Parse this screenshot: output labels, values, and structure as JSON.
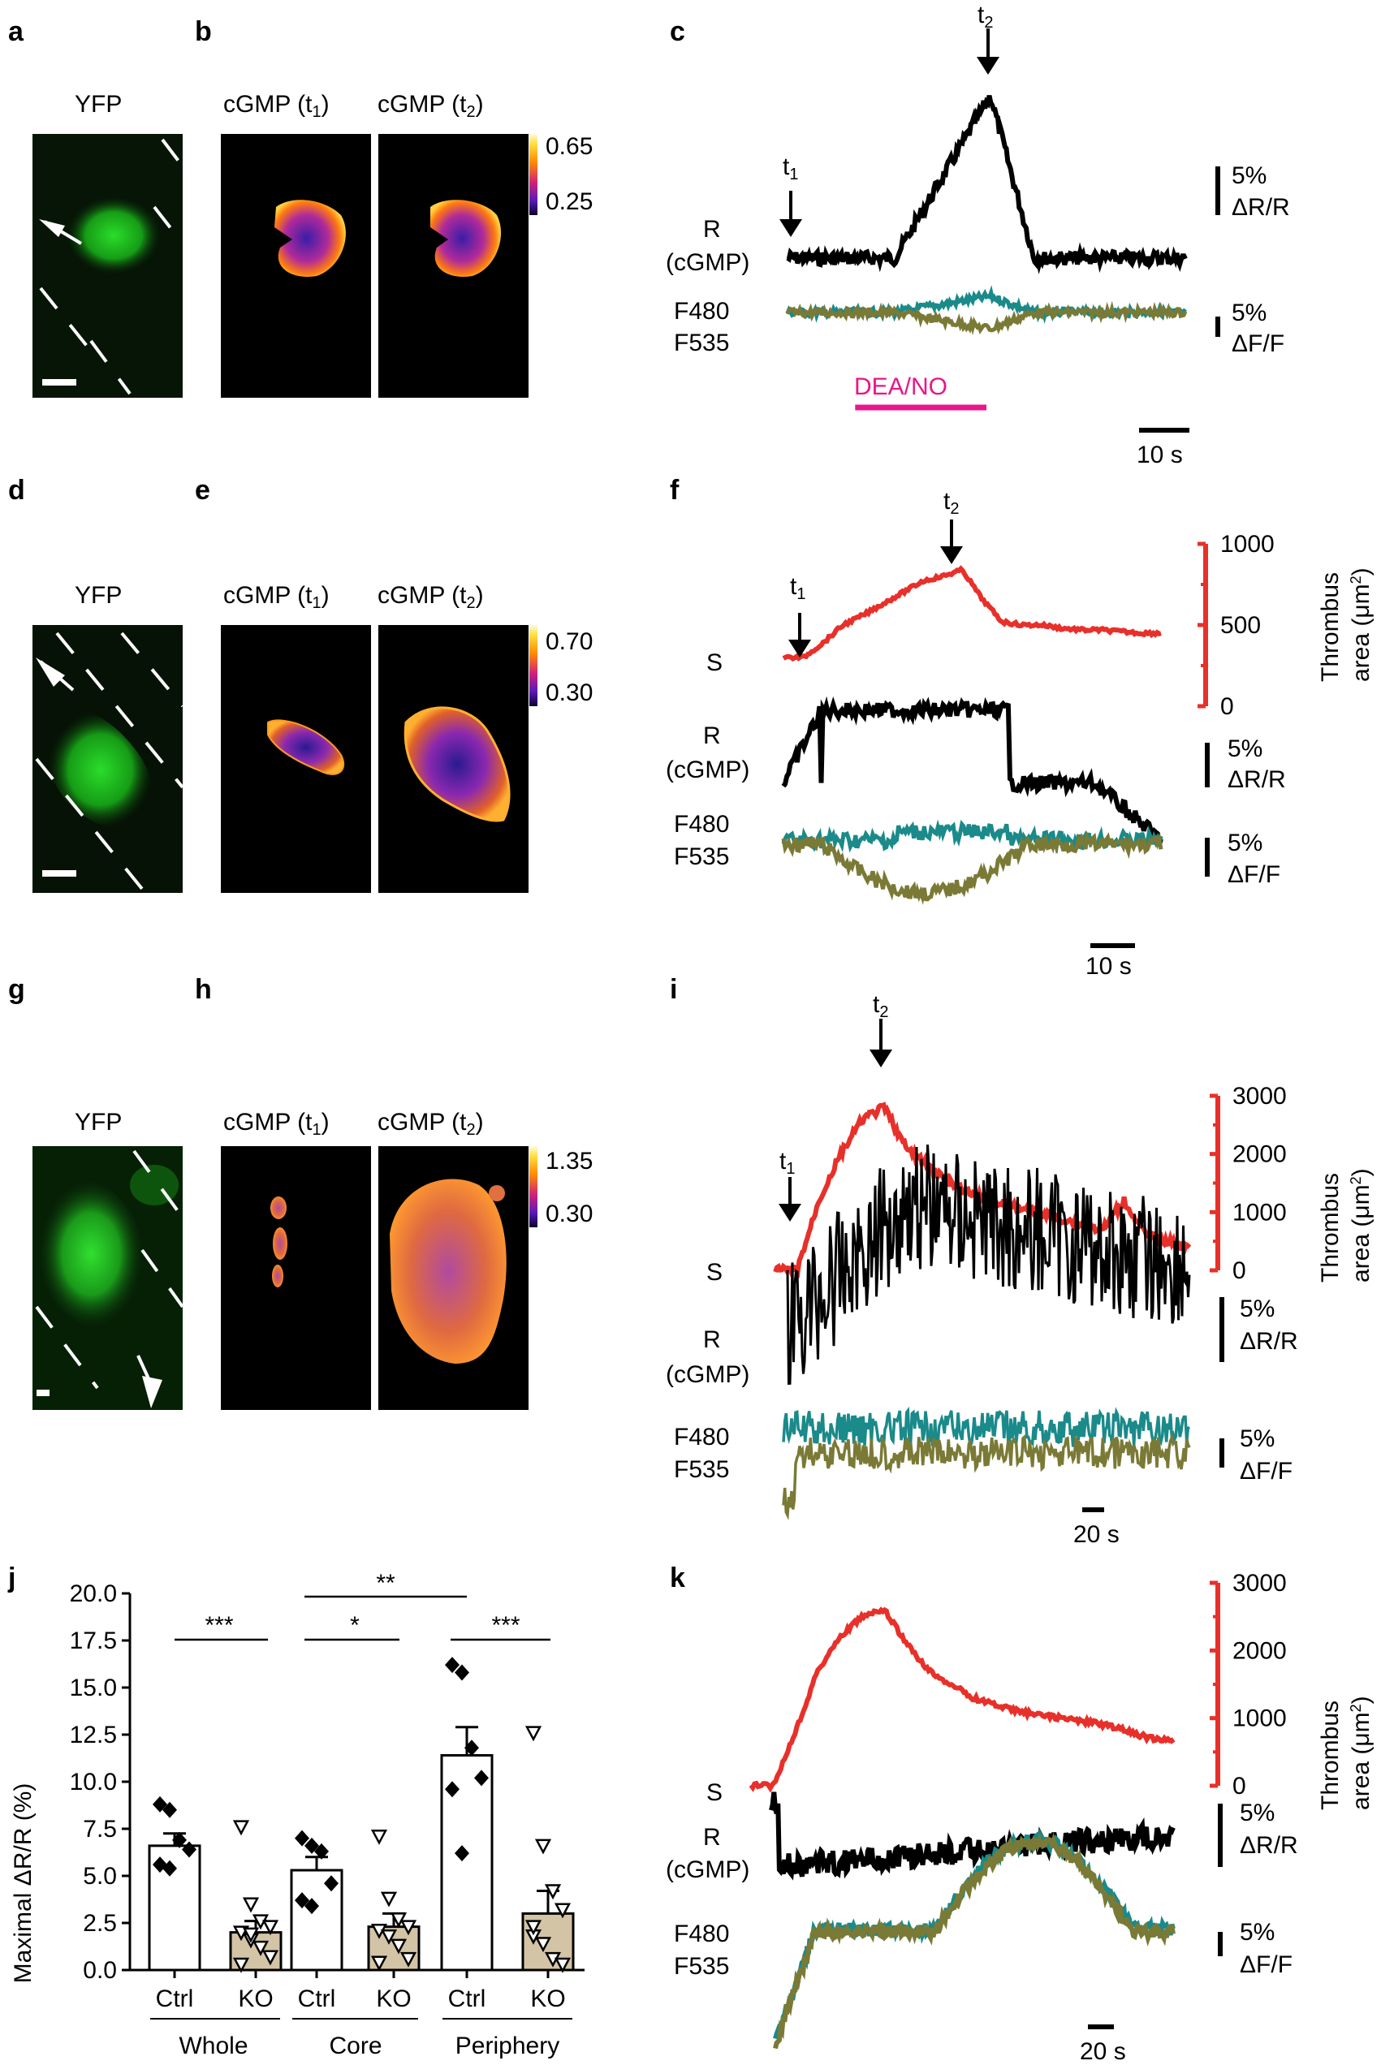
{
  "panels": {
    "a": "a",
    "b": "b",
    "c": "c",
    "d": "d",
    "e": "e",
    "f": "f",
    "g": "g",
    "h": "h",
    "i": "i",
    "j": "j",
    "k": "k"
  },
  "images": {
    "yfp_label": "YFP",
    "cgmp_prefix": "cGMP (",
    "t_letter": "t",
    "sub_1": "1",
    "sub_2": "2",
    "close_paren": ")",
    "b_max": "0.65",
    "b_min": "0.25",
    "e_max": "0.70",
    "e_min": "0.30",
    "h_max": "1.35",
    "h_min": "0.30"
  },
  "traces": {
    "t_letter": "t",
    "sub_1": "1",
    "sub_2": "2",
    "r_label": "R",
    "cgmp_label": "(cGMP)",
    "s_label": "S",
    "f480_label": "F480",
    "f535_label": "F535",
    "pct_5": "5%",
    "delta_r_r": "ΔR/R",
    "delta_f_f": "ΔF/F",
    "stimulus_label": "DEA/NO",
    "time_10s": "10 s",
    "time_20s": "20 s",
    "thrombus_line1": "Thrombus",
    "thrombus_line2_prefix": "area (μm",
    "superscript_2": "2",
    "close_paren": ")",
    "thrombus_ticks_f": [
      "0",
      "500",
      "1000"
    ],
    "thrombus_ticks_ik": [
      "0",
      "1000",
      "2000",
      "3000"
    ]
  },
  "colors": {
    "r_trace": "#000000",
    "f480_trace": "#1a8a8a",
    "f535_trace": "#7a7a36",
    "thrombus_trace": "#e8302a",
    "stimulus_bar": "#e8168b",
    "ko_bar": "#d3c4a6"
  },
  "chart_data": [
    {
      "type": "bar",
      "title": "",
      "xlabel": "",
      "ylabel": "Maximal ΔR/R (%)",
      "ylim": [
        0,
        20
      ],
      "yticks": [
        "0.0",
        "2.5",
        "5.0",
        "7.5",
        "10.0",
        "12.5",
        "15.0",
        "17.5",
        "20.0"
      ],
      "groups": [
        {
          "name": "Whole",
          "bars": [
            {
              "label": "Ctrl",
              "mean": 6.6,
              "sem": 0.65,
              "points": [
                8.8,
                8.5,
                6.9,
                6.4,
                5.6,
                5.4
              ]
            },
            {
              "label": "KO",
              "mean": 2.0,
              "sem": 0.6,
              "points": [
                7.6,
                3.5,
                2.6,
                2.3,
                2.0,
                1.6,
                1.2,
                0.7,
                0.3,
                1.9
              ]
            }
          ]
        },
        {
          "name": "Core",
          "bars": [
            {
              "label": "Ctrl",
              "mean": 5.3,
              "sem": 0.7,
              "points": [
                7.0,
                6.6,
                6.3,
                4.6,
                3.7,
                3.4
              ]
            },
            {
              "label": "KO",
              "mean": 2.3,
              "sem": 0.7,
              "points": [
                7.1,
                3.8,
                2.7,
                2.3,
                2.1,
                1.8,
                1.3,
                0.6,
                0.4
              ]
            }
          ]
        },
        {
          "name": "Periphery",
          "bars": [
            {
              "label": "Ctrl",
              "mean": 11.4,
              "sem": 1.5,
              "points": [
                16.2,
                15.8,
                11.8,
                10.2,
                9.6,
                6.2
              ]
            },
            {
              "label": "KO",
              "mean": 3.0,
              "sem": 1.2,
              "points": [
                12.6,
                6.6,
                4.2,
                3.2,
                1.8,
                1.4,
                0.6,
                0.3,
                2.3
              ]
            }
          ]
        }
      ],
      "significance": [
        {
          "label": "***",
          "between": [
            "Whole Ctrl",
            "Whole KO"
          ]
        },
        {
          "label": "*",
          "between": [
            "Core Ctrl",
            "Core KO"
          ]
        },
        {
          "label": "**",
          "between": [
            "Core Ctrl",
            "Periphery Ctrl"
          ]
        },
        {
          "label": "***",
          "between": [
            "Periphery Ctrl",
            "Periphery KO"
          ]
        }
      ]
    },
    {
      "type": "line",
      "panel": "c",
      "series": [
        {
          "name": "R (cGMP)",
          "baseline": 0,
          "peak": 20,
          "rise_start": 0.27,
          "peak_at": 0.51,
          "fall_end": 0.62,
          "noise": 1.2
        },
        {
          "name": "F480",
          "baseline": 0,
          "peak": 4,
          "rise_start": 0.27,
          "peak_at": 0.51,
          "fall_end": 0.62,
          "noise": 1.0
        },
        {
          "name": "F535",
          "baseline": 0,
          "peak": -4,
          "rise_start": 0.27,
          "peak_at": 0.51,
          "fall_end": 0.62,
          "noise": 1.0
        }
      ],
      "stimulus": {
        "label": "DEA/NO",
        "start": 0.17,
        "end": 0.5
      },
      "arrows": {
        "t1": 0.0,
        "t2": 0.51
      }
    },
    {
      "type": "line",
      "panel": "f",
      "series": [
        {
          "name": "Thrombus area",
          "values_um2": [
            300,
            300,
            390,
            500,
            560,
            630,
            700,
            770,
            800,
            840,
            660,
            520,
            500,
            500,
            480,
            470,
            470,
            460,
            450,
            450
          ]
        },
        {
          "name": "R (cGMP)",
          "baseline": 0,
          "peak": 10,
          "noise": 1.0
        },
        {
          "name": "F480",
          "baseline": 0,
          "peak": 3,
          "noise": 1.0
        },
        {
          "name": "F535",
          "baseline": 0,
          "peak": -5,
          "noise": 1.0
        }
      ],
      "arrows": {
        "t1": 0.05,
        "t2": 0.44
      }
    },
    {
      "type": "line",
      "panel": "i",
      "series": [
        {
          "name": "Thrombus area",
          "values_um2": [
            0,
            0,
            1200,
            2000,
            2600,
            2800,
            2100,
            1800,
            1500,
            1300,
            1200,
            1100,
            1000,
            900,
            800,
            700,
            1200,
            600,
            500,
            400
          ]
        },
        {
          "name": "R (cGMP)",
          "baseline": 0,
          "peak": 6,
          "noise": 6.0
        },
        {
          "name": "F480",
          "baseline": 0,
          "peak": 2,
          "noise": 1.5
        },
        {
          "name": "F535",
          "baseline": 0,
          "peak": 0,
          "noise": 1.5
        }
      ],
      "arrows": {
        "t1": 0.02,
        "t2": 0.25
      }
    },
    {
      "type": "line",
      "panel": "k",
      "series": [
        {
          "name": "Thrombus area",
          "values_um2": [
            0,
            0,
            800,
            1700,
            2200,
            2500,
            2600,
            2100,
            1700,
            1500,
            1300,
            1200,
            1100,
            1050,
            1000,
            950,
            900,
            800,
            700,
            650
          ]
        },
        {
          "name": "R (cGMP)",
          "baseline": 0,
          "peak": 1,
          "noise": 1.5
        },
        {
          "name": "F480",
          "baseline": 0,
          "peak": 9,
          "noise": 1.0
        },
        {
          "name": "F535",
          "baseline": 0,
          "peak": 9,
          "noise": 1.0
        }
      ]
    }
  ]
}
